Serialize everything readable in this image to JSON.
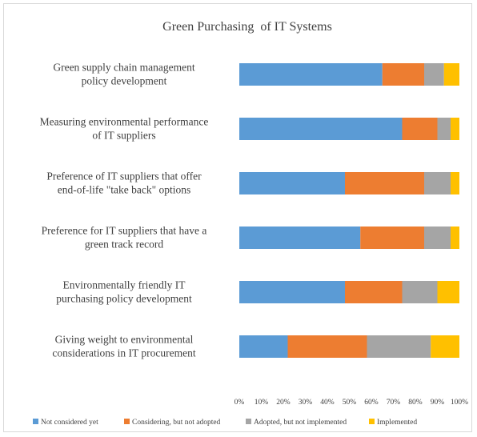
{
  "chart_data": {
    "type": "bar",
    "orientation": "horizontal",
    "stacked": true,
    "percent_stacked": true,
    "title": "Green Purchasing  of IT Systems",
    "categories": [
      [
        "Green supply chain management",
        "policy development"
      ],
      [
        "Measuring environmental performance",
        "of  IT suppliers"
      ],
      [
        "Preference of IT  suppliers that offer",
        "end-of-life \"take back\" options"
      ],
      [
        "Preference for IT suppliers that have a",
        "green track record"
      ],
      [
        "Environmentally friendly IT",
        "purchasing policy development"
      ],
      [
        "Giving weight to environmental",
        "considerations in IT procurement"
      ]
    ],
    "series": [
      {
        "name": "Not considered yet",
        "color": "#5b9bd5",
        "values": [
          65,
          74,
          48,
          55,
          48,
          22
        ]
      },
      {
        "name": "Considering, but not adopted",
        "color": "#ed7d31",
        "values": [
          19,
          16,
          36,
          29,
          26,
          36
        ]
      },
      {
        "name": "Adopted, but not implemented",
        "color": "#a5a5a5",
        "values": [
          9,
          6,
          12,
          12,
          16,
          29
        ]
      },
      {
        "name": "Implemented",
        "color": "#ffc000",
        "values": [
          7,
          4,
          4,
          4,
          10,
          13
        ]
      }
    ],
    "xlim": [
      0,
      100
    ],
    "x_ticks": [
      "0%",
      "10%",
      "20%",
      "30%",
      "40%",
      "50%",
      "60%",
      "70%",
      "80%",
      "90%",
      "100%"
    ],
    "legend_position": "bottom",
    "grid": false
  }
}
